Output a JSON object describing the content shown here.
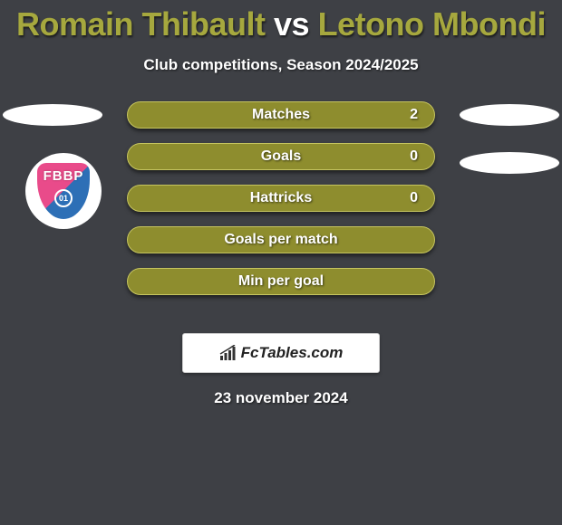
{
  "title": {
    "player1": "Romain Thibault",
    "vs": "vs",
    "player2": "Letono Mbondi",
    "player1_color": "#a6a83e",
    "vs_color": "#ffffff",
    "player2_color": "#a6a83e"
  },
  "subtitle": "Club competitions, Season 2024/2025",
  "badge": {
    "text": "FBBP",
    "ring": "01",
    "top_color": "#e94b8a",
    "bottom_color": "#2d6fb6"
  },
  "stats": {
    "pill_fill": "#8e8d2e",
    "pill_border": "#c6c560",
    "rows": [
      {
        "label": "Matches",
        "left": null,
        "right": "2"
      },
      {
        "label": "Goals",
        "left": null,
        "right": "0"
      },
      {
        "label": "Hattricks",
        "left": null,
        "right": "0"
      },
      {
        "label": "Goals per match",
        "left": null,
        "right": null
      },
      {
        "label": "Min per goal",
        "left": null,
        "right": null
      }
    ]
  },
  "side_ovals": {
    "color": "#ffffff",
    "show": {
      "left1": true,
      "right1": true,
      "right2": true
    }
  },
  "brand": "FcTables.com",
  "date": "23 november 2024",
  "background_color": "#3e4045"
}
